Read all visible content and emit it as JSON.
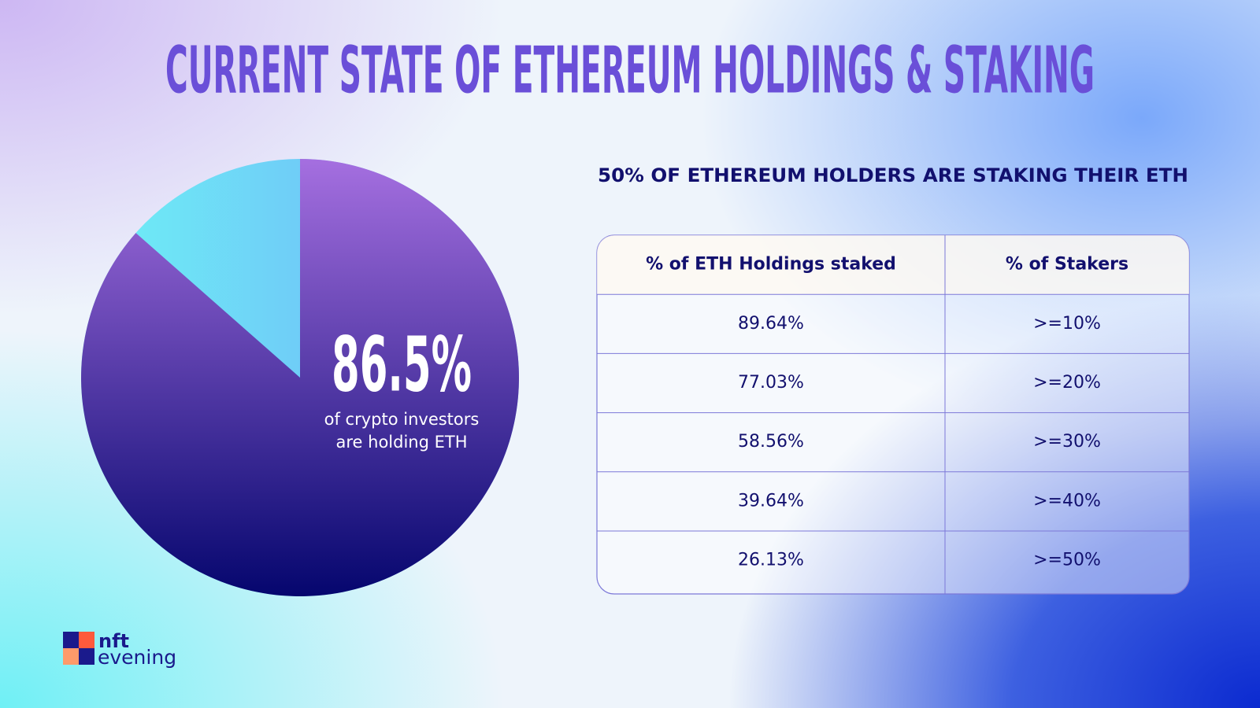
{
  "title": "CURRENT STATE OF ETHEREUM HOLDINGS & STAKING",
  "chart_data": {
    "type": "pie",
    "values": [
      86.5
    ],
    "value_labels": [
      "86.5%"
    ],
    "caption": [
      "of crypto investors",
      "are holding ETH"
    ],
    "colors": [
      "#a56fe0",
      "#05066e"
    ]
  },
  "table": {
    "title": "50% OF ETHEREUM HOLDERS ARE STAKING THEIR ETH",
    "header": [
      "% of ETH Holdings staked",
      "% of Stakers"
    ],
    "rows": [
      [
        "89.64%",
        ">=10%"
      ],
      [
        "77.03%",
        ">=20%"
      ],
      [
        "58.56%",
        ">=30%"
      ],
      [
        "39.64%",
        ">=40%"
      ],
      [
        "26.13%",
        ">=50%"
      ]
    ]
  },
  "logo": [
    "nft",
    "evening"
  ]
}
